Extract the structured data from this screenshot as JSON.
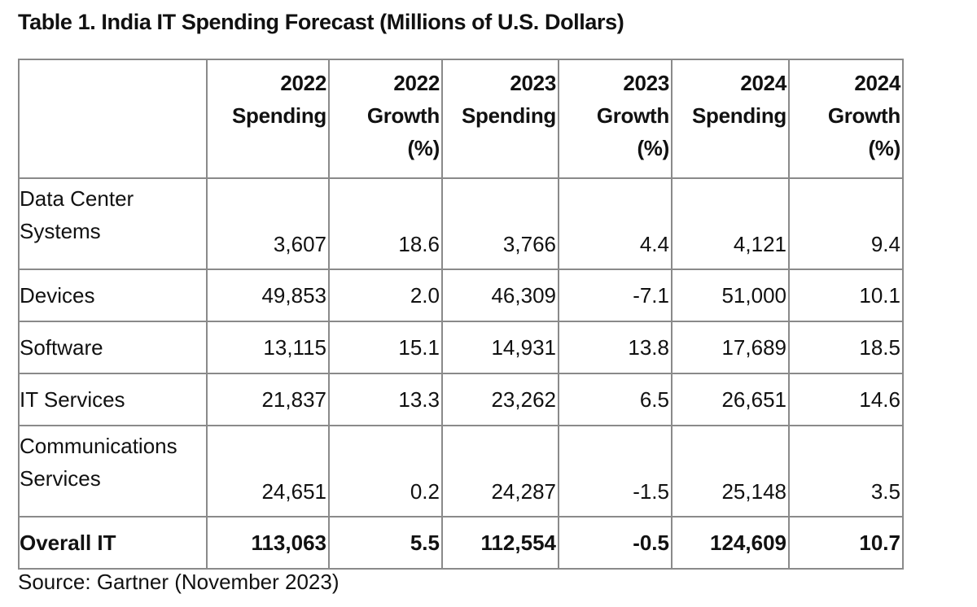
{
  "title": "Table 1. India IT Spending Forecast (Millions of U.S. Dollars)",
  "columns": [
    {
      "line1": "2022",
      "line2": "Spending",
      "line3": ""
    },
    {
      "line1": "2022",
      "line2": "Growth",
      "line3": "(%)"
    },
    {
      "line1": "2023",
      "line2": "Spending",
      "line3": ""
    },
    {
      "line1": "2023",
      "line2": "Growth",
      "line3": "(%)"
    },
    {
      "line1": "2024",
      "line2": "Spending",
      "line3": ""
    },
    {
      "line1": "2024",
      "line2": "Growth",
      "line3": "(%)"
    }
  ],
  "rows": [
    {
      "label": "Data Center Systems",
      "values": [
        "3,607",
        "18.6",
        "3,766",
        "4.4",
        "4,121",
        "9.4"
      ]
    },
    {
      "label": "Devices",
      "values": [
        "49,853",
        "2.0",
        "46,309",
        "-7.1",
        "51,000",
        "10.1"
      ]
    },
    {
      "label": "Software",
      "values": [
        "13,115",
        "15.1",
        "14,931",
        "13.8",
        "17,689",
        "18.5"
      ]
    },
    {
      "label": "IT Services",
      "values": [
        "21,837",
        "13.3",
        "23,262",
        "6.5",
        "26,651",
        "14.6"
      ]
    },
    {
      "label": "Communications Services",
      "values": [
        "24,651",
        "0.2",
        "24,287",
        "-1.5",
        "25,148",
        "3.5"
      ]
    },
    {
      "label": "Overall IT",
      "values": [
        "113,063",
        "5.5",
        "112,554",
        "-0.5",
        "124,609",
        "10.7"
      ]
    }
  ],
  "source": "Source: Gartner (November 2023)"
}
